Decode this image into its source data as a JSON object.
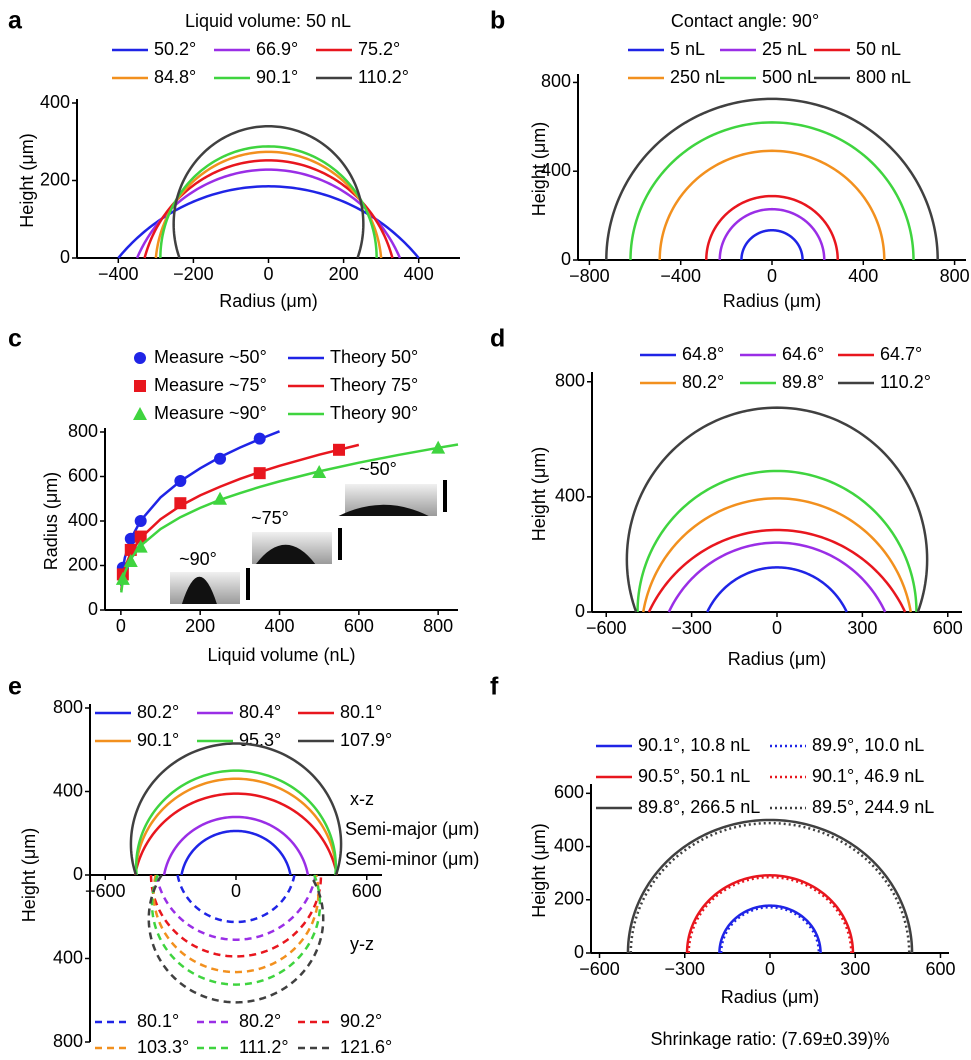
{
  "chart_data": [
    {
      "type": "profile",
      "panel": "a",
      "title": "Liquid volume: 50 nL",
      "xlabel": "Radius (μm)",
      "ylabel": "Height (μm)",
      "xlim": [
        -510,
        510
      ],
      "ylim": [
        0,
        400
      ],
      "xticks": [
        {
          "value": -400,
          "label": "−400"
        },
        {
          "value": -200,
          "label": "−200"
        },
        0,
        200,
        400
      ],
      "yticks": [
        0,
        200,
        400
      ],
      "series": [
        {
          "name": "50.2°",
          "color": "#1f24e6",
          "dash": "solid",
          "contact_radius": 400,
          "height": 185
        },
        {
          "name": "66.9°",
          "color": "#9a2ee6",
          "dash": "solid",
          "contact_radius": 350,
          "height": 228
        },
        {
          "name": "75.2°",
          "color": "#e8161e",
          "dash": "solid",
          "contact_radius": 330,
          "height": 252
        },
        {
          "name": "84.8°",
          "color": "#f2901e",
          "dash": "solid",
          "contact_radius": 300,
          "height": 274
        },
        {
          "name": "90.1°",
          "color": "#3fd43f",
          "dash": "solid",
          "contact_radius": 288,
          "height": 288
        },
        {
          "name": "110.2°",
          "color": "#404040",
          "dash": "solid",
          "contact_radius": 237,
          "height": 340
        }
      ]
    },
    {
      "type": "profile",
      "panel": "b",
      "title": "Contact angle: 90°",
      "xlabel": "Radius (μm)",
      "ylabel": "Height (μm)",
      "xlim": [
        -850,
        850
      ],
      "ylim": [
        0,
        820
      ],
      "xticks": [
        {
          "value": -800,
          "label": "−800"
        },
        {
          "value": -400,
          "label": "−400"
        },
        0,
        400,
        800
      ],
      "yticks": [
        0,
        400,
        800
      ],
      "series": [
        {
          "name": "5 nL",
          "color": "#1f24e6",
          "dash": "solid",
          "contact_radius": 134,
          "height": 134
        },
        {
          "name": "25 nL",
          "color": "#9a2ee6",
          "dash": "solid",
          "contact_radius": 229,
          "height": 229
        },
        {
          "name": "50 nL",
          "color": "#e8161e",
          "dash": "solid",
          "contact_radius": 288,
          "height": 288
        },
        {
          "name": "250 nL",
          "color": "#f2901e",
          "dash": "solid",
          "contact_radius": 492,
          "height": 492
        },
        {
          "name": "500 nL",
          "color": "#3fd43f",
          "dash": "solid",
          "contact_radius": 620,
          "height": 620
        },
        {
          "name": "800 nL",
          "color": "#404040",
          "dash": "solid",
          "contact_radius": 726,
          "height": 726
        }
      ]
    },
    {
      "type": "scatter",
      "panel": "c",
      "xlabel": "Liquid volume (nL)",
      "ylabel": "Radius (μm)",
      "xlim": [
        -40,
        850
      ],
      "ylim": [
        0,
        800
      ],
      "xticks": [
        0,
        200,
        400,
        600,
        800
      ],
      "yticks": [
        0,
        200,
        400,
        600,
        800
      ],
      "annotations": [
        "~50°",
        "~75°",
        "~90°"
      ],
      "series": [
        {
          "name": "Measure ~50°",
          "color": "#1f24e6",
          "marker": "circle",
          "x": [
            5,
            25,
            50,
            150,
            250,
            350
          ],
          "y": [
            190,
            320,
            400,
            580,
            680,
            770
          ]
        },
        {
          "name": "Theory 50°",
          "color": "#1f24e6",
          "x": [
            1,
            5,
            10,
            25,
            50,
            100,
            150,
            200,
            250,
            300,
            350,
            400
          ],
          "y": [
            109,
            186,
            235,
            319,
            402,
            506,
            579,
            637,
            687,
            730,
            768,
            803
          ]
        },
        {
          "name": "Measure ~75°",
          "color": "#e8161e",
          "marker": "square",
          "x": [
            5,
            25,
            50,
            150,
            350,
            550
          ],
          "y": [
            160,
            270,
            330,
            480,
            615,
            720
          ]
        },
        {
          "name": "Theory 75°",
          "color": "#e8161e",
          "x": [
            1,
            5,
            10,
            25,
            50,
            100,
            150,
            200,
            250,
            300,
            350,
            400,
            500,
            600
          ],
          "y": [
            88,
            150,
            190,
            257,
            324,
            408,
            468,
            515,
            554,
            589,
            620,
            648,
            698,
            742
          ]
        },
        {
          "name": "Measure ~90°",
          "color": "#3fd43f",
          "marker": "triangle",
          "x": [
            5,
            25,
            50,
            250,
            500,
            800
          ],
          "y": [
            140,
            220,
            285,
            500,
            620,
            730
          ]
        },
        {
          "name": "Theory 90°",
          "color": "#3fd43f",
          "x": [
            1,
            5,
            10,
            25,
            50,
            100,
            150,
            200,
            250,
            300,
            350,
            400,
            500,
            600,
            700,
            800,
            850
          ],
          "y": [
            79,
            134,
            169,
            230,
            289,
            364,
            417,
            459,
            495,
            525,
            553,
            578,
            623,
            662,
            697,
            729,
            744
          ]
        }
      ]
    },
    {
      "type": "profile",
      "panel": "d",
      "xlabel": "Radius (μm)",
      "ylabel": "Height (μm)",
      "xlim": [
        -650,
        650
      ],
      "ylim": [
        0,
        820
      ],
      "xticks": [
        {
          "value": -600,
          "label": "−600"
        },
        {
          "value": -300,
          "label": "−300"
        },
        0,
        300,
        600
      ],
      "yticks": [
        0,
        400,
        800
      ],
      "series": [
        {
          "name": "64.8°",
          "color": "#1f24e6",
          "dash": "solid",
          "contact_radius": 245,
          "height": 155
        },
        {
          "name": "64.6°",
          "color": "#9a2ee6",
          "dash": "solid",
          "contact_radius": 380,
          "height": 241
        },
        {
          "name": "64.7°",
          "color": "#e8161e",
          "dash": "solid",
          "contact_radius": 450,
          "height": 285
        },
        {
          "name": "80.2°",
          "color": "#f2901e",
          "dash": "solid",
          "contact_radius": 470,
          "height": 395
        },
        {
          "name": "89.8°",
          "color": "#3fd43f",
          "dash": "solid",
          "contact_radius": 490,
          "height": 490
        },
        {
          "name": "110.2°",
          "color": "#404040",
          "dash": "solid",
          "contact_radius": 495,
          "height": 710
        }
      ]
    },
    {
      "type": "profile",
      "panel": "e",
      "ylabel": "Height (μm)",
      "xlim": [
        -670,
        670
      ],
      "ylim": [
        0,
        800
      ],
      "y2lim": [
        0,
        800
      ],
      "xticks": [
        {
          "value": -600,
          "label": "−600"
        },
        0,
        600
      ],
      "yticks": [
        0,
        400,
        800
      ],
      "y2ticks": [
        400,
        800
      ],
      "annotations": [
        "x-z",
        "Semi-major (μm)",
        "Semi-minor (μm)",
        "y-z"
      ],
      "series": [
        {
          "name": "80.2°",
          "color": "#1f24e6",
          "dash": "solid",
          "contact_radius": 250,
          "height": 211
        },
        {
          "name": "80.4°",
          "color": "#9a2ee6",
          "dash": "solid",
          "contact_radius": 330,
          "height": 278
        },
        {
          "name": "80.1°",
          "color": "#e8161e",
          "dash": "solid",
          "contact_radius": 463,
          "height": 390
        },
        {
          "name": "90.1°",
          "color": "#f2901e",
          "dash": "solid",
          "contact_radius": 460,
          "height": 461
        },
        {
          "name": "95.3°",
          "color": "#3fd43f",
          "dash": "solid",
          "contact_radius": 456,
          "height": 500
        },
        {
          "name": "107.9°",
          "color": "#404040",
          "dash": "solid",
          "contact_radius": 459,
          "height": 630
        },
        {
          "name": "80.1°",
          "color": "#1f24e6",
          "dash": "dashed",
          "axis": "y2",
          "contact_radius": 268,
          "height": 225
        },
        {
          "name": "80.2°",
          "color": "#9a2ee6",
          "dash": "dashed",
          "axis": "y2",
          "contact_radius": 365,
          "height": 310
        },
        {
          "name": "90.2°",
          "color": "#e8161e",
          "dash": "dashed",
          "axis": "y2",
          "contact_radius": 390,
          "height": 390
        },
        {
          "name": "103.3°",
          "color": "#f2901e",
          "dash": "dashed",
          "axis": "y2",
          "contact_radius": 368,
          "height": 465
        },
        {
          "name": "111.2°",
          "color": "#3fd43f",
          "dash": "dashed",
          "axis": "y2",
          "contact_radius": 359,
          "height": 525
        },
        {
          "name": "121.6°",
          "color": "#404040",
          "dash": "dashed",
          "axis": "y2",
          "contact_radius": 341,
          "height": 610
        }
      ]
    },
    {
      "type": "profile",
      "panel": "f",
      "xlabel": "Radius (μm)",
      "ylabel": "Height (μm)",
      "caption": "Shrinkage ratio: (7.69±0.39)%",
      "xlim": [
        -630,
        630
      ],
      "ylim": [
        0,
        620
      ],
      "xticks": [
        {
          "value": -600,
          "label": "−600"
        },
        {
          "value": -300,
          "label": "−300"
        },
        0,
        300,
        600
      ],
      "yticks": [
        0,
        200,
        400,
        600
      ],
      "series": [
        {
          "name": "90.1°, 10.8 nL",
          "color": "#1f24e6",
          "dash": "solid",
          "contact_radius": 178,
          "height": 178
        },
        {
          "name": "89.9°, 10.0 nL",
          "color": "#1f24e6",
          "dash": "dotted",
          "contact_radius": 172,
          "height": 172
        },
        {
          "name": "90.5°, 50.1 nL",
          "color": "#e8161e",
          "dash": "solid",
          "contact_radius": 292,
          "height": 292
        },
        {
          "name": "90.1°, 46.9 nL",
          "color": "#e8161e",
          "dash": "dotted",
          "contact_radius": 286,
          "height": 285
        },
        {
          "name": "89.8°, 266.5 nL",
          "color": "#404040",
          "dash": "solid",
          "contact_radius": 500,
          "height": 500
        },
        {
          "name": "89.5°, 244.9 nL",
          "color": "#404040",
          "dash": "dotted",
          "contact_radius": 490,
          "height": 488
        }
      ]
    }
  ]
}
